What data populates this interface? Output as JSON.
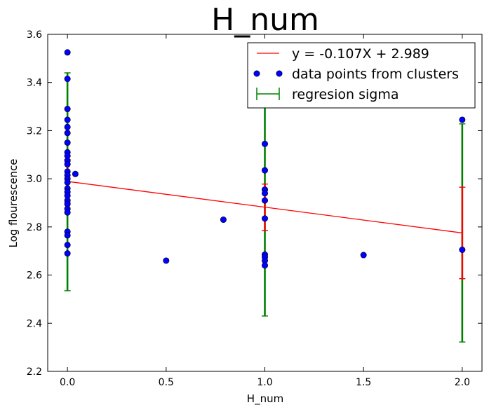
{
  "chart_data": {
    "type": "scatter",
    "title": "H_num",
    "xlabel": "H_num",
    "ylabel": "Log flourescence",
    "xlim": [
      -0.1,
      2.1
    ],
    "ylim": [
      2.2,
      3.6
    ],
    "xticks": [
      0.0,
      0.5,
      1.0,
      1.5,
      2.0
    ],
    "xtick_labels": [
      "0.0",
      "0.5",
      "1.0",
      "1.5",
      "2.0"
    ],
    "yticks": [
      2.2,
      2.4,
      2.6,
      2.8,
      3.0,
      3.2,
      3.4,
      3.6
    ],
    "ytick_labels": [
      "2.2",
      "2.4",
      "2.6",
      "2.8",
      "3.0",
      "3.2",
      "3.4",
      "3.6"
    ],
    "grid": false,
    "legend_position": "top-right",
    "regression": {
      "label": "y = -0.107X + 2.989",
      "slope": -0.107,
      "intercept": 2.989,
      "x_range": [
        0.0,
        2.0
      ],
      "color": "#ff0000"
    },
    "series": [
      {
        "name": "data points from clusters",
        "color": "#0000ff",
        "points": [
          {
            "x": 0.0,
            "y": 3.525
          },
          {
            "x": 0.0,
            "y": 3.415
          },
          {
            "x": 0.0,
            "y": 3.29
          },
          {
            "x": 0.0,
            "y": 3.245
          },
          {
            "x": 0.0,
            "y": 3.215
          },
          {
            "x": 0.0,
            "y": 3.19
          },
          {
            "x": 0.0,
            "y": 3.15
          },
          {
            "x": 0.0,
            "y": 3.11
          },
          {
            "x": 0.0,
            "y": 3.095
          },
          {
            "x": 0.0,
            "y": 3.075
          },
          {
            "x": 0.0,
            "y": 3.06
          },
          {
            "x": 0.0,
            "y": 3.03
          },
          {
            "x": 0.0,
            "y": 3.015
          },
          {
            "x": 0.0,
            "y": 3.0
          },
          {
            "x": 0.0,
            "y": 2.985
          },
          {
            "x": 0.0,
            "y": 2.96
          },
          {
            "x": 0.0,
            "y": 2.945
          },
          {
            "x": 0.0,
            "y": 2.93
          },
          {
            "x": 0.0,
            "y": 2.91
          },
          {
            "x": 0.0,
            "y": 2.895
          },
          {
            "x": 0.0,
            "y": 2.875
          },
          {
            "x": 0.0,
            "y": 2.86
          },
          {
            "x": 0.0,
            "y": 2.78
          },
          {
            "x": 0.0,
            "y": 2.765
          },
          {
            "x": 0.0,
            "y": 2.725
          },
          {
            "x": 0.0,
            "y": 2.69
          },
          {
            "x": 0.04,
            "y": 3.02
          },
          {
            "x": 0.5,
            "y": 2.66
          },
          {
            "x": 0.79,
            "y": 2.83
          },
          {
            "x": 1.0,
            "y": 3.145
          },
          {
            "x": 1.0,
            "y": 3.035
          },
          {
            "x": 1.0,
            "y": 2.955
          },
          {
            "x": 1.0,
            "y": 2.94
          },
          {
            "x": 1.0,
            "y": 2.91
          },
          {
            "x": 1.0,
            "y": 2.835
          },
          {
            "x": 1.0,
            "y": 2.685
          },
          {
            "x": 1.0,
            "y": 2.675
          },
          {
            "x": 1.0,
            "y": 2.66
          },
          {
            "x": 1.0,
            "y": 2.64
          },
          {
            "x": 1.5,
            "y": 2.683
          },
          {
            "x": 2.0,
            "y": 3.245
          },
          {
            "x": 2.0,
            "y": 2.705
          }
        ]
      }
    ],
    "error_bars": {
      "sigma_label": "regresion sigma",
      "sigma_color": "#008000",
      "inner_color": "#ff0000",
      "bars": [
        {
          "x": 0.0,
          "center": 2.989,
          "sigma_low": 2.535,
          "sigma_high": 3.44,
          "inner_low": 2.9,
          "inner_high": 3.08
        },
        {
          "x": 1.0,
          "center": 2.882,
          "sigma_low": 2.43,
          "sigma_high": 3.34,
          "inner_low": 2.785,
          "inner_high": 2.978
        },
        {
          "x": 2.0,
          "center": 2.775,
          "sigma_low": 2.322,
          "sigma_high": 3.228,
          "inner_low": 2.585,
          "inner_high": 2.965
        }
      ]
    }
  }
}
